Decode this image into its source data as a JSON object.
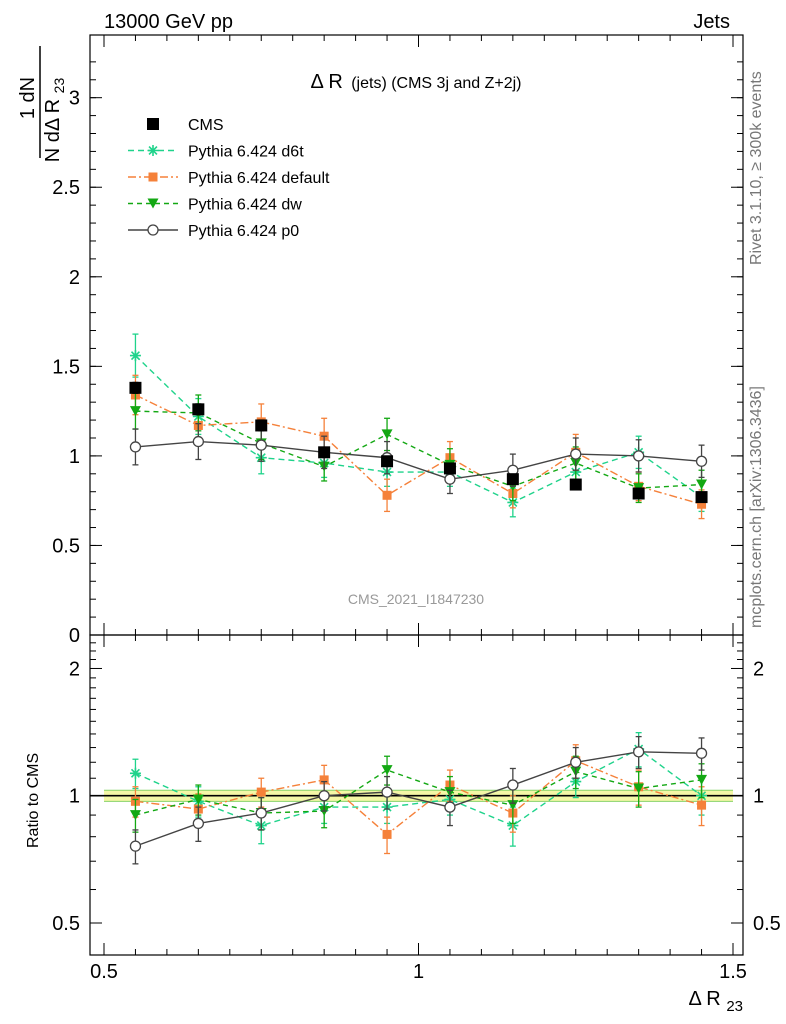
{
  "header": {
    "left": "13000 GeV pp",
    "right": "Jets",
    "side_top": "Rivet 3.1.10, ≥ 300k events",
    "side_bottom": "mcplots.cern.ch [arXiv:1306.3436]",
    "watermark": "CMS_2021_I1847230"
  },
  "colors": {
    "cms": "#000000",
    "d6t": "#1fd38b",
    "default": "#f5813a",
    "dw": "#13a813",
    "p0": "#444444",
    "band_fill": "#f4f7a6",
    "band_line": "#88d36a"
  },
  "chart_data": [
    {
      "type": "scatter",
      "panel": "main",
      "title": "Δ R (jets) (CMS 3j and Z+2j)",
      "title_main": "Δ R",
      "title_suffix": "(jets) (CMS 3j and Z+2j)",
      "ylabel_num": "1   dN",
      "ylabel_den": "N dΔ R",
      "ylabel_sub": "23",
      "ylim": [
        0,
        3.35
      ],
      "xlim": [
        0.5,
        1.5
      ],
      "yticks": [
        0,
        0.5,
        1,
        1.5,
        2,
        2.5,
        3
      ],
      "ytick_labels": [
        "0",
        "0.5",
        "1",
        "1.5",
        "2",
        "2.5",
        "3"
      ],
      "x": [
        0.55,
        0.65,
        0.75,
        0.85,
        0.95,
        1.05,
        1.15,
        1.25,
        1.35,
        1.45
      ],
      "series": [
        {
          "key": "cms",
          "name": "CMS",
          "marker": "square",
          "y": [
            1.38,
            1.26,
            1.17,
            1.02,
            0.97,
            0.93,
            0.87,
            0.84,
            0.79,
            0.77
          ],
          "err": [
            0.03,
            0.03,
            0.03,
            0.02,
            0.02,
            0.02,
            0.02,
            0.02,
            0.02,
            0.02
          ]
        },
        {
          "key": "d6t",
          "name": "Pythia 6.424 d6t",
          "marker": "star",
          "dash": "6,4",
          "y": [
            1.56,
            1.22,
            0.99,
            0.96,
            0.91,
            0.91,
            0.74,
            0.91,
            1.02,
            0.77
          ],
          "err": [
            0.12,
            0.1,
            0.09,
            0.08,
            0.08,
            0.08,
            0.08,
            0.08,
            0.09,
            0.08
          ]
        },
        {
          "key": "default",
          "name": "Pythia 6.424 default",
          "marker": "square",
          "dash": "8,3,2,3",
          "y": [
            1.34,
            1.17,
            1.19,
            1.11,
            0.78,
            0.99,
            0.79,
            1.02,
            0.83,
            0.73
          ],
          "err": [
            0.11,
            0.1,
            0.1,
            0.1,
            0.09,
            0.09,
            0.08,
            0.1,
            0.08,
            0.08
          ]
        },
        {
          "key": "dw",
          "name": "Pythia 6.424 dw",
          "marker": "tri-down",
          "dash": "5,4",
          "y": [
            1.25,
            1.24,
            1.07,
            0.94,
            1.12,
            0.95,
            0.83,
            0.96,
            0.82,
            0.84
          ],
          "err": [
            0.1,
            0.1,
            0.09,
            0.08,
            0.09,
            0.09,
            0.08,
            0.09,
            0.08,
            0.08
          ]
        },
        {
          "key": "p0",
          "name": "Pythia 6.424 p0",
          "marker": "circle-open",
          "dash": "",
          "y": [
            1.05,
            1.08,
            1.06,
            1.02,
            0.99,
            0.87,
            0.92,
            1.01,
            1.0,
            0.97
          ],
          "err": [
            0.1,
            0.1,
            0.09,
            0.09,
            0.09,
            0.08,
            0.09,
            0.09,
            0.09,
            0.09
          ]
        }
      ],
      "legend_position": "top-left"
    },
    {
      "type": "scatter",
      "panel": "ratio",
      "ylabel": "Ratio to CMS",
      "xlabel": "Δ R",
      "xlabel_sub": "23",
      "ylim": [
        0.42,
        2.4
      ],
      "log_y": true,
      "yticks": [
        0.5,
        1,
        2
      ],
      "ytick_labels": [
        "0.5",
        "1",
        "2"
      ],
      "xticks": [
        0.5,
        1,
        1.5
      ],
      "xtick_labels": [
        "0.5",
        "1",
        "1.5"
      ],
      "band": {
        "y": 1.0,
        "half_width": 0.03
      },
      "x": [
        0.55,
        0.65,
        0.75,
        0.85,
        0.95,
        1.05,
        1.15,
        1.25,
        1.35,
        1.45
      ],
      "series": [
        {
          "key": "d6t",
          "name": "Pythia 6.424 d6t",
          "marker": "star",
          "dash": "6,4",
          "y": [
            1.13,
            0.97,
            0.85,
            0.94,
            0.94,
            0.98,
            0.85,
            1.08,
            1.29,
            1.0
          ],
          "err": [
            0.09,
            0.08,
            0.08,
            0.08,
            0.08,
            0.08,
            0.09,
            0.09,
            0.12,
            0.1
          ]
        },
        {
          "key": "default",
          "name": "Pythia 6.424 default",
          "marker": "square",
          "dash": "8,3,2,3",
          "y": [
            0.97,
            0.93,
            1.02,
            1.09,
            0.81,
            1.06,
            0.91,
            1.21,
            1.05,
            0.95
          ],
          "err": [
            0.08,
            0.08,
            0.08,
            0.09,
            0.08,
            0.09,
            0.09,
            0.11,
            0.1,
            0.1
          ]
        },
        {
          "key": "dw",
          "name": "Pythia 6.424 dw",
          "marker": "tri-down",
          "dash": "5,4",
          "y": [
            0.9,
            0.98,
            0.91,
            0.92,
            1.15,
            1.02,
            0.95,
            1.14,
            1.04,
            1.09
          ],
          "err": [
            0.08,
            0.08,
            0.08,
            0.08,
            0.09,
            0.09,
            0.09,
            0.1,
            0.1,
            0.1
          ]
        },
        {
          "key": "p0",
          "name": "Pythia 6.424 p0",
          "marker": "circle-open",
          "dash": "",
          "y": [
            0.76,
            0.86,
            0.91,
            1.0,
            1.02,
            0.94,
            1.06,
            1.2,
            1.27,
            1.26
          ],
          "err": [
            0.07,
            0.08,
            0.08,
            0.08,
            0.09,
            0.09,
            0.1,
            0.1,
            0.11,
            0.11
          ]
        }
      ]
    }
  ]
}
